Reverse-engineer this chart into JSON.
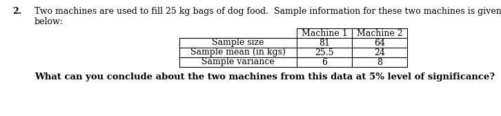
{
  "question_number": "2.",
  "intro_line1": "Two machines are used to fill 25 kg bags of dog food.  Sample information for these two machines is given",
  "intro_line2": "below:",
  "col_headers": [
    "Machine 1",
    "Machine 2"
  ],
  "row_labels": [
    "Sample size",
    "Sample mean (in kgs)",
    "Sample variance"
  ],
  "machine1_values": [
    "81",
    "25.5",
    "6"
  ],
  "machine2_values": [
    "64",
    "24",
    "8"
  ],
  "footer_text": "What can you conclude about the two machines from this data at 5% level of significance?",
  "bg_color": "#ffffff",
  "text_color": "#000000",
  "font_size": 9.0,
  "footer_font_size": 9.5
}
